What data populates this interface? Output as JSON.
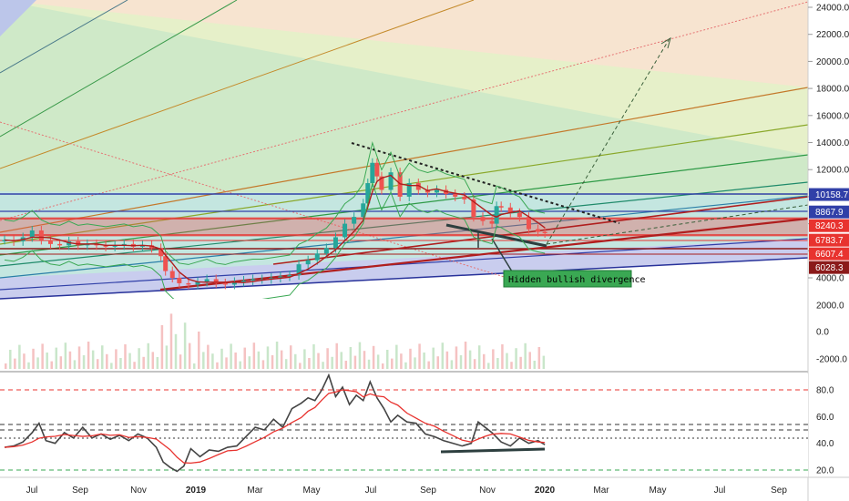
{
  "chart_data": {
    "type": "candlestick",
    "x_axis": {
      "tick_labels": [
        {
          "label": "Jul",
          "bold": false
        },
        {
          "label": "Sep",
          "bold": false
        },
        {
          "label": "Nov",
          "bold": false
        },
        {
          "label": "2019",
          "bold": true
        },
        {
          "label": "Mar",
          "bold": false
        },
        {
          "label": "May",
          "bold": false
        },
        {
          "label": "Jul",
          "bold": false
        },
        {
          "label": "Sep",
          "bold": false
        },
        {
          "label": "Nov",
          "bold": false
        },
        {
          "label": "2020",
          "bold": true
        },
        {
          "label": "Mar",
          "bold": false
        },
        {
          "label": "May",
          "bold": false
        },
        {
          "label": "Jul",
          "bold": false
        },
        {
          "label": "Sep",
          "bold": false
        }
      ]
    },
    "price_axis": {
      "ylim": [
        2400,
        24600
      ],
      "ticks": [
        4000,
        6000,
        8000,
        10000,
        12000,
        14000,
        16000,
        18000,
        20000,
        22000,
        24000
      ],
      "tick_labels": [
        "4000.0",
        "6000.0",
        "8000.0",
        "10000.0",
        "12000.0",
        "14000.0",
        "16000.0",
        "18000.0",
        "20000.0",
        "22000.0",
        "24000.0"
      ]
    },
    "volume_axis": {
      "tick_labels": [
        "2000.0",
        "0.0",
        "-2000.0"
      ]
    },
    "rsi_axis": {
      "ylim": [
        17,
        94
      ],
      "ticks": [
        20,
        40,
        60,
        80
      ],
      "tick_labels": [
        "20.0",
        "40.0",
        "60.0",
        "80.0"
      ]
    },
    "price_tags": [
      {
        "label": "10158.7",
        "value": 10158.7,
        "color": "#3140a8"
      },
      {
        "label": "8867.9",
        "value": 8867.9,
        "color": "#3140a8"
      },
      {
        "label": "8240.3",
        "value": 8240.3,
        "color": "#e8332f"
      },
      {
        "label": "6783.7",
        "value": 6783.7,
        "color": "#e8332f"
      },
      {
        "label": "6607.4",
        "value": 6607.4,
        "color": "#e8332f"
      },
      {
        "label": "6028.3",
        "value": 6028.3,
        "color": "#8b1a1a"
      }
    ],
    "annotation": {
      "text": "Hidden bullish divergence",
      "background": "#3aa853"
    },
    "price_series": [
      {
        "t": 0,
        "v": 6800
      },
      {
        "t": 8,
        "v": 6700
      },
      {
        "t": 16,
        "v": 7000
      },
      {
        "t": 24,
        "v": 7500
      },
      {
        "t": 32,
        "v": 6800
      },
      {
        "t": 40,
        "v": 6500
      },
      {
        "t": 48,
        "v": 6400
      },
      {
        "t": 56,
        "v": 6700
      },
      {
        "t": 64,
        "v": 6400
      },
      {
        "t": 72,
        "v": 6500
      },
      {
        "t": 80,
        "v": 6400
      },
      {
        "t": 88,
        "v": 6300
      },
      {
        "t": 96,
        "v": 6400
      },
      {
        "t": 104,
        "v": 6500
      },
      {
        "t": 112,
        "v": 6300
      },
      {
        "t": 120,
        "v": 6400
      },
      {
        "t": 128,
        "v": 6200
      },
      {
        "t": 136,
        "v": 5600
      },
      {
        "t": 140,
        "v": 4500
      },
      {
        "t": 146,
        "v": 4000
      },
      {
        "t": 152,
        "v": 3600
      },
      {
        "t": 160,
        "v": 3500
      },
      {
        "t": 168,
        "v": 3700
      },
      {
        "t": 176,
        "v": 3900
      },
      {
        "t": 184,
        "v": 3600
      },
      {
        "t": 192,
        "v": 3500
      },
      {
        "t": 200,
        "v": 3700
      },
      {
        "t": 208,
        "v": 3800
      },
      {
        "t": 216,
        "v": 3900
      },
      {
        "t": 224,
        "v": 3900
      },
      {
        "t": 232,
        "v": 4000
      },
      {
        "t": 240,
        "v": 4100
      },
      {
        "t": 248,
        "v": 4200
      },
      {
        "t": 256,
        "v": 5000
      },
      {
        "t": 264,
        "v": 5300
      },
      {
        "t": 272,
        "v": 5800
      },
      {
        "t": 280,
        "v": 6200
      },
      {
        "t": 288,
        "v": 7000
      },
      {
        "t": 296,
        "v": 8000
      },
      {
        "t": 304,
        "v": 8500
      },
      {
        "t": 312,
        "v": 9500
      },
      {
        "t": 316,
        "v": 11000
      },
      {
        "t": 320,
        "v": 12500
      },
      {
        "t": 324,
        "v": 11500
      },
      {
        "t": 328,
        "v": 10500
      },
      {
        "t": 336,
        "v": 11800
      },
      {
        "t": 344,
        "v": 10000
      },
      {
        "t": 352,
        "v": 11000
      },
      {
        "t": 360,
        "v": 10500
      },
      {
        "t": 368,
        "v": 10300
      },
      {
        "t": 376,
        "v": 10500
      },
      {
        "t": 384,
        "v": 10200
      },
      {
        "t": 392,
        "v": 10000
      },
      {
        "t": 400,
        "v": 9800
      },
      {
        "t": 408,
        "v": 8500
      },
      {
        "t": 416,
        "v": 8200
      },
      {
        "t": 424,
        "v": 8000
      },
      {
        "t": 428,
        "v": 9300
      },
      {
        "t": 432,
        "v": 9200
      },
      {
        "t": 440,
        "v": 8800
      },
      {
        "t": 448,
        "v": 8500
      },
      {
        "t": 456,
        "v": 7600
      },
      {
        "t": 464,
        "v": 7400
      },
      {
        "t": 470,
        "v": 7300
      }
    ],
    "rsi_series": [
      {
        "t": 0,
        "v": 37
      },
      {
        "t": 8,
        "v": 38
      },
      {
        "t": 16,
        "v": 41
      },
      {
        "t": 24,
        "v": 48
      },
      {
        "t": 30,
        "v": 55
      },
      {
        "t": 36,
        "v": 42
      },
      {
        "t": 44,
        "v": 40
      },
      {
        "t": 52,
        "v": 48
      },
      {
        "t": 60,
        "v": 44
      },
      {
        "t": 68,
        "v": 52
      },
      {
        "t": 76,
        "v": 44
      },
      {
        "t": 84,
        "v": 47
      },
      {
        "t": 92,
        "v": 43
      },
      {
        "t": 100,
        "v": 46
      },
      {
        "t": 108,
        "v": 42
      },
      {
        "t": 116,
        "v": 47
      },
      {
        "t": 124,
        "v": 44
      },
      {
        "t": 132,
        "v": 37
      },
      {
        "t": 138,
        "v": 26
      },
      {
        "t": 144,
        "v": 22
      },
      {
        "t": 150,
        "v": 19
      },
      {
        "t": 156,
        "v": 23
      },
      {
        "t": 162,
        "v": 36
      },
      {
        "t": 170,
        "v": 30
      },
      {
        "t": 178,
        "v": 35
      },
      {
        "t": 186,
        "v": 34
      },
      {
        "t": 194,
        "v": 37
      },
      {
        "t": 202,
        "v": 38
      },
      {
        "t": 210,
        "v": 45
      },
      {
        "t": 218,
        "v": 52
      },
      {
        "t": 226,
        "v": 50
      },
      {
        "t": 234,
        "v": 58
      },
      {
        "t": 242,
        "v": 52
      },
      {
        "t": 250,
        "v": 66
      },
      {
        "t": 258,
        "v": 70
      },
      {
        "t": 264,
        "v": 74
      },
      {
        "t": 270,
        "v": 72
      },
      {
        "t": 276,
        "v": 80
      },
      {
        "t": 282,
        "v": 91
      },
      {
        "t": 288,
        "v": 75
      },
      {
        "t": 294,
        "v": 82
      },
      {
        "t": 300,
        "v": 69
      },
      {
        "t": 306,
        "v": 76
      },
      {
        "t": 312,
        "v": 72
      },
      {
        "t": 318,
        "v": 86
      },
      {
        "t": 324,
        "v": 74
      },
      {
        "t": 330,
        "v": 66
      },
      {
        "t": 336,
        "v": 56
      },
      {
        "t": 342,
        "v": 61
      },
      {
        "t": 350,
        "v": 56
      },
      {
        "t": 358,
        "v": 55
      },
      {
        "t": 366,
        "v": 47
      },
      {
        "t": 374,
        "v": 45
      },
      {
        "t": 382,
        "v": 42
      },
      {
        "t": 390,
        "v": 40
      },
      {
        "t": 398,
        "v": 38
      },
      {
        "t": 406,
        "v": 40
      },
      {
        "t": 412,
        "v": 56
      },
      {
        "t": 418,
        "v": 52
      },
      {
        "t": 424,
        "v": 48
      },
      {
        "t": 432,
        "v": 41
      },
      {
        "t": 440,
        "v": 38
      },
      {
        "t": 448,
        "v": 44
      },
      {
        "t": 456,
        "v": 40
      },
      {
        "t": 464,
        "v": 42
      },
      {
        "t": 470,
        "v": 39
      }
    ]
  }
}
